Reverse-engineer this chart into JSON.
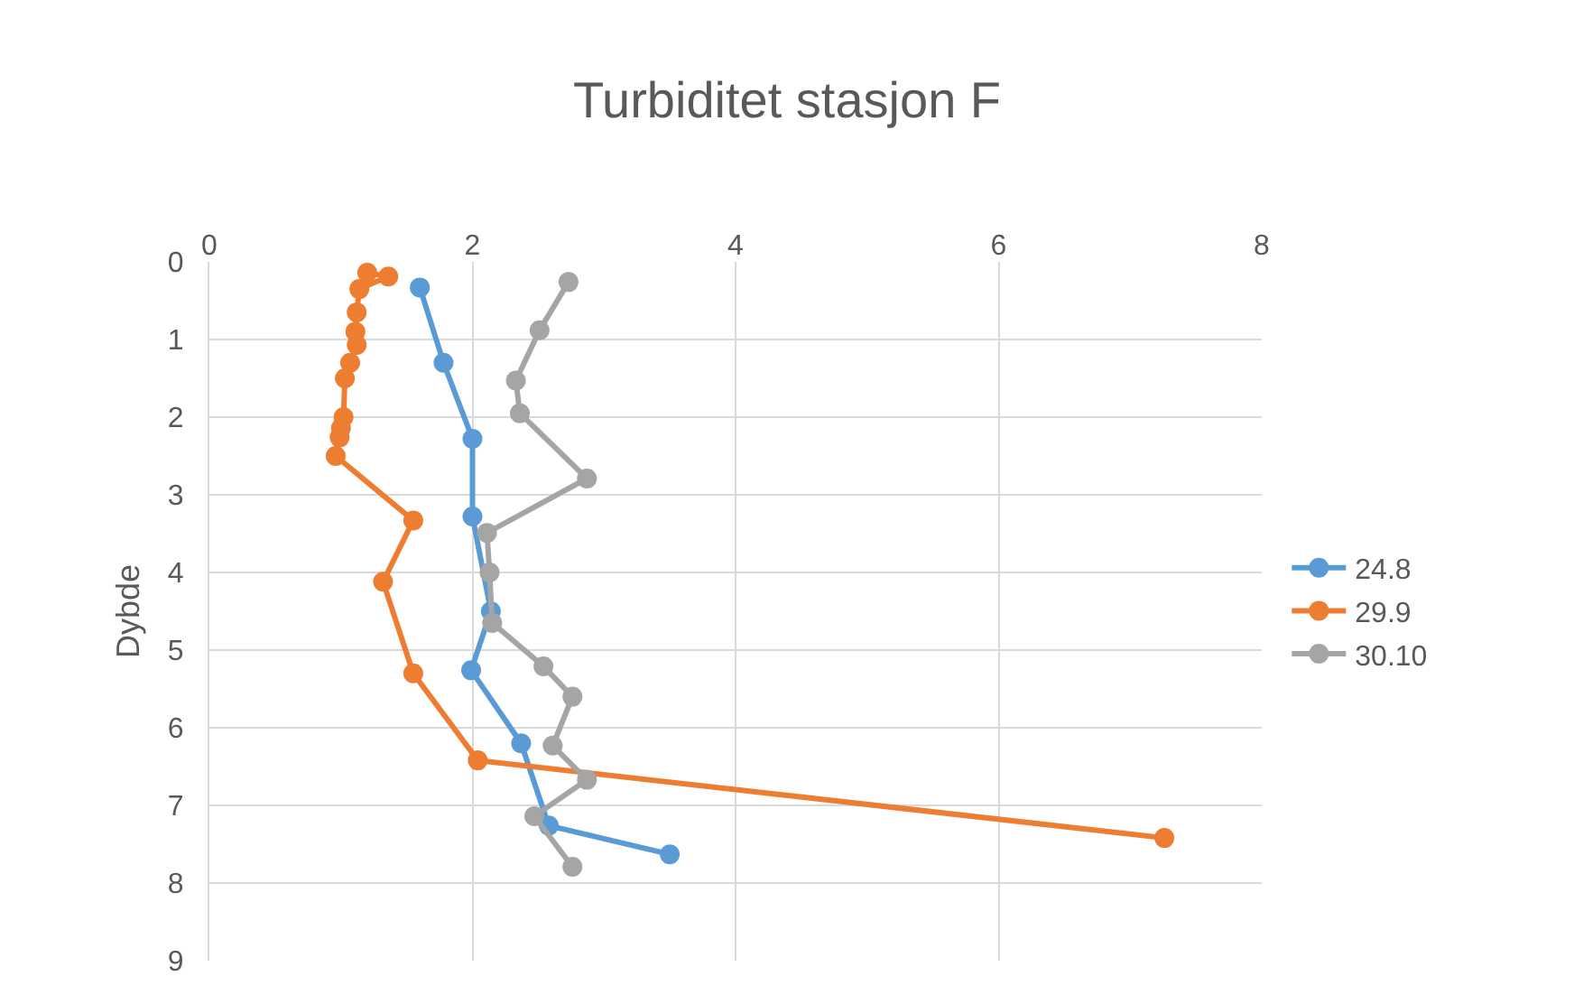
{
  "chart_data": {
    "type": "line",
    "title": "Turbiditet stasjon F",
    "ylabel": "Dybde",
    "xlim": [
      0,
      8
    ],
    "xticks": [
      0,
      2,
      4,
      6,
      8
    ],
    "ylim": [
      9,
      0
    ],
    "yticks": [
      0,
      1,
      2,
      3,
      4,
      5,
      6,
      7,
      8,
      9
    ],
    "grid": true,
    "legend": "right",
    "marker": "circle",
    "line_style": "solid",
    "series": [
      {
        "name": "24.8",
        "color": "#5b9bd5",
        "x": [
          1.6,
          1.78,
          2.0,
          2.0,
          2.14,
          1.99,
          2.37,
          2.58,
          3.5
        ],
        "values": [
          0.33,
          1.3,
          2.28,
          3.28,
          4.5,
          5.26,
          6.2,
          7.26,
          7.63
        ]
      },
      {
        "name": "29.9",
        "color": "#ed7d31",
        "x": [
          1.2,
          1.36,
          1.14,
          1.12,
          1.11,
          1.12,
          1.07,
          1.03,
          1.02,
          1.0,
          0.99,
          0.96,
          1.55,
          1.32,
          1.55,
          2.04,
          7.26
        ],
        "values": [
          0.14,
          0.19,
          0.35,
          0.65,
          0.9,
          1.07,
          1.3,
          1.5,
          2.0,
          2.14,
          2.26,
          2.5,
          3.33,
          4.12,
          5.3,
          6.42,
          7.42
        ]
      },
      {
        "name": "30.10",
        "color": "#a5a5a5",
        "x": [
          2.73,
          2.51,
          2.33,
          2.36,
          2.87,
          2.11,
          2.13,
          2.15,
          2.54,
          2.76,
          2.61,
          2.87,
          2.47,
          2.76
        ],
        "values": [
          0.26,
          0.88,
          1.53,
          1.95,
          2.79,
          3.49,
          4.0,
          4.65,
          5.21,
          5.6,
          6.23,
          6.67,
          7.14,
          7.79
        ]
      }
    ]
  }
}
